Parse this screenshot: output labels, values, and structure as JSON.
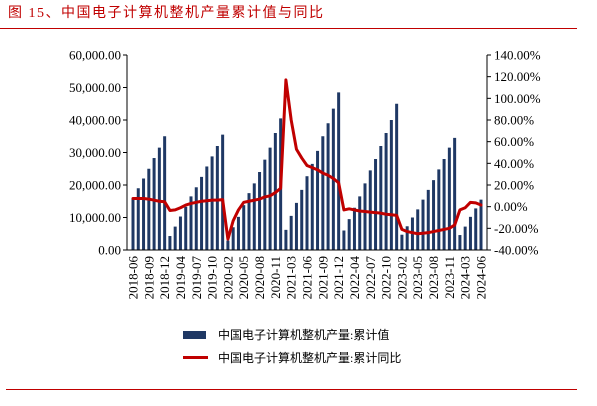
{
  "chart_data": {
    "type": "bar",
    "title": "图 15、中国电子计算机整机产量累计值与同比",
    "categories": [
      "2018-06",
      "2018-07",
      "2018-08",
      "2018-09",
      "2018-10",
      "2018-11",
      "2018-12",
      "2019-02",
      "2019-03",
      "2019-04",
      "2019-05",
      "2019-06",
      "2019-07",
      "2019-08",
      "2019-09",
      "2019-10",
      "2019-11",
      "2019-12",
      "2020-02",
      "2020-03",
      "2020-04",
      "2020-05",
      "2020-06",
      "2020-07",
      "2020-08",
      "2020-09",
      "2020-10",
      "2020-11",
      "2020-12",
      "2021-02",
      "2021-03",
      "2021-04",
      "2021-05",
      "2021-06",
      "2021-07",
      "2021-08",
      "2021-09",
      "2021-10",
      "2021-11",
      "2021-12",
      "2022-02",
      "2022-03",
      "2022-04",
      "2022-05",
      "2022-06",
      "2022-07",
      "2022-08",
      "2022-09",
      "2022-10",
      "2022-11",
      "2022-12",
      "2023-02",
      "2023-03",
      "2023-04",
      "2023-05",
      "2023-06",
      "2023-07",
      "2023-08",
      "2023-09",
      "2023-10",
      "2023-11",
      "2023-12",
      "2024-02",
      "2024-03",
      "2024-04",
      "2024-05",
      "2024-06"
    ],
    "x_tick_labels": [
      "2018-06",
      "2018-09",
      "2018-12",
      "2019-04",
      "2019-07",
      "2019-10",
      "2020-02",
      "2020-05",
      "2020-08",
      "2020-11",
      "2021-03",
      "2021-06",
      "2021-09",
      "2021-12",
      "2022-04",
      "2022-07",
      "2022-10",
      "2023-02",
      "2023-05",
      "2023-08",
      "2023-11",
      "2024-03",
      "2024-06"
    ],
    "series": [
      {
        "name": "中国电子计算机整机产量:累计值",
        "type": "bar",
        "axis": "left",
        "color": "#1f3864",
        "values": [
          16000,
          19000,
          22000,
          25000,
          28300,
          31500,
          35000,
          4300,
          7200,
          10300,
          13300,
          16500,
          19300,
          22500,
          25700,
          28800,
          32000,
          35500,
          2900,
          7000,
          10200,
          13800,
          17500,
          20500,
          24000,
          27800,
          31500,
          36000,
          40500,
          6200,
          10500,
          14500,
          18500,
          22700,
          26500,
          30500,
          35000,
          39000,
          43500,
          48500,
          6000,
          9500,
          13000,
          16500,
          20500,
          24500,
          28000,
          32000,
          36000,
          40000,
          45000,
          4700,
          7300,
          10000,
          12500,
          15500,
          18500,
          21500,
          24800,
          28000,
          31500,
          34500,
          4600,
          7200,
          10200,
          12800,
          15500
        ]
      },
      {
        "name": "中国电子计算机整机产量:累计同比",
        "type": "line",
        "axis": "right",
        "color": "#c00000",
        "values": [
          7.5,
          7.5,
          7.5,
          7.0,
          6.0,
          5.0,
          4.5,
          -3.5,
          -3.0,
          -1.0,
          1.5,
          3.0,
          4.0,
          5.0,
          5.5,
          6.0,
          6.0,
          6.5,
          -30.0,
          -13.0,
          -3.0,
          4.0,
          5.0,
          6.0,
          7.0,
          9.0,
          10.0,
          13.0,
          17.0,
          117.0,
          80.0,
          53.0,
          45.0,
          38.0,
          36.0,
          34.0,
          31.0,
          29.0,
          26.0,
          22.0,
          -3.0,
          -2.0,
          -3.0,
          -4.0,
          -4.5,
          -5.0,
          -5.5,
          -6.0,
          -7.0,
          -7.5,
          -8.0,
          -21.0,
          -23.0,
          -24.0,
          -25.0,
          -24.5,
          -24.0,
          -23.0,
          -22.0,
          -21.0,
          -20.0,
          -17.0,
          -3.0,
          -1.0,
          4.0,
          3.5,
          1.5
        ]
      }
    ],
    "y_left": {
      "ylim": [
        0,
        60000
      ],
      "ticks": [
        0,
        10000,
        20000,
        30000,
        40000,
        50000,
        60000
      ],
      "tick_labels": [
        "0.00",
        "10,000.00",
        "20,000.00",
        "30,000.00",
        "40,000.00",
        "50,000.00",
        "60,000.00"
      ]
    },
    "y_right": {
      "ylim": [
        -40,
        140
      ],
      "ticks": [
        -40,
        -20,
        0,
        20,
        40,
        60,
        80,
        100,
        120,
        140
      ],
      "tick_labels": [
        "-40.00%",
        "-20.00%",
        "0.00%",
        "20.00%",
        "40.00%",
        "60.00%",
        "80.00%",
        "100.00%",
        "120.00%",
        "140.00%"
      ]
    },
    "grid": false,
    "legend_position": "bottom"
  },
  "colors": {
    "caption": "#c00000",
    "rule": "#c00000",
    "axis": "#000000"
  }
}
